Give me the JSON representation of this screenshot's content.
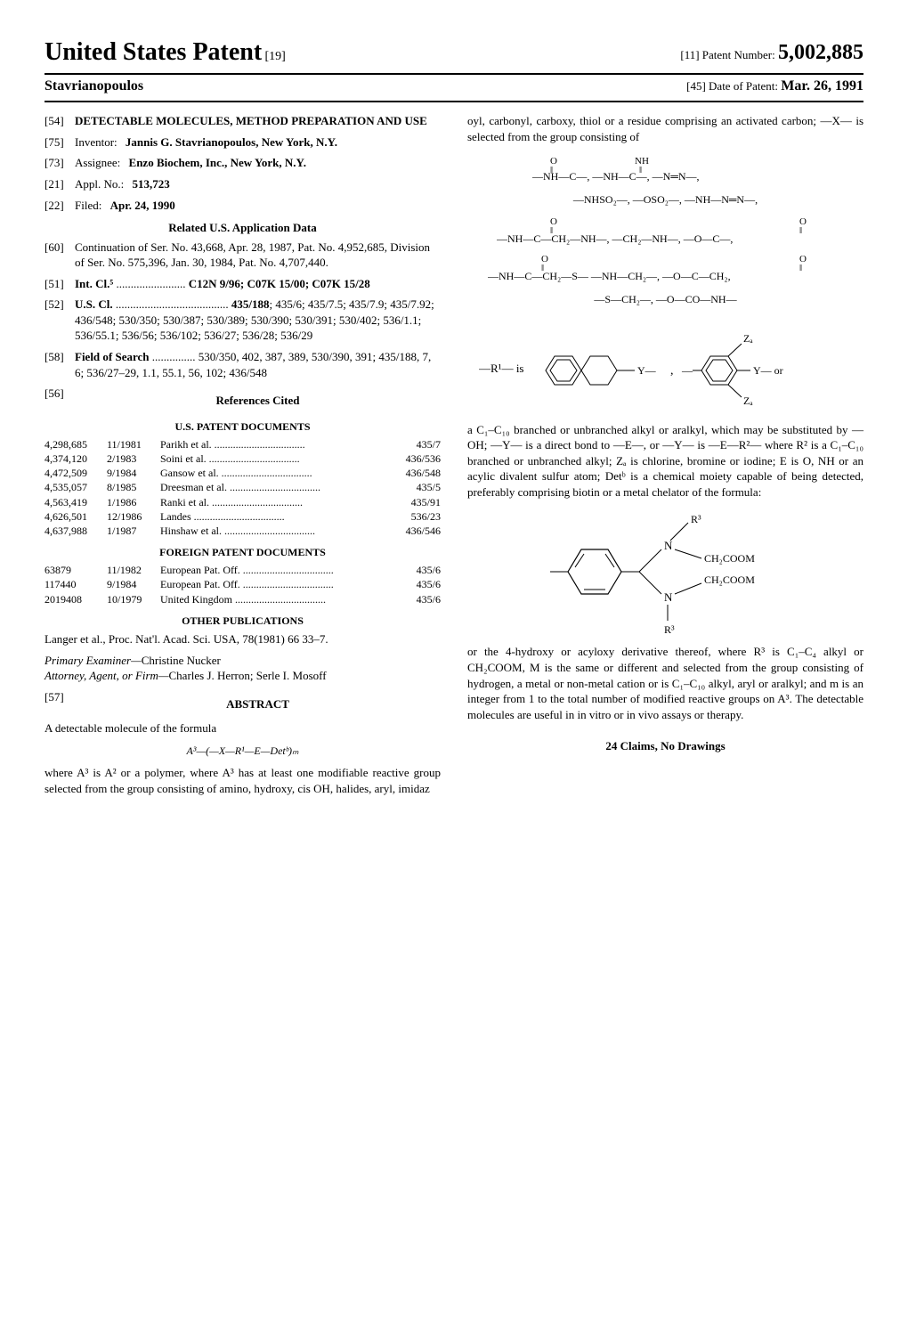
{
  "header": {
    "main_title_left": "United States Patent",
    "main_title_num": "[19]",
    "inventor_surname": "Stavrianopoulos",
    "patent_num_label": "[11]  Patent Number:",
    "patent_number": "5,002,885",
    "date_label": "[45]  Date of Patent:",
    "date_value": "Mar. 26, 1991"
  },
  "left": {
    "title_num": "[54]",
    "title": "DETECTABLE MOLECULES, METHOD PREPARATION AND USE",
    "inventor_num": "[75]",
    "inventor_label": "Inventor:",
    "inventor_val": "Jannis G. Stavrianopoulos, New York, N.Y.",
    "assignee_num": "[73]",
    "assignee_label": "Assignee:",
    "assignee_val": "Enzo Biochem, Inc., New York, N.Y.",
    "appl_num": "[21]",
    "appl_label": "Appl. No.:",
    "appl_val": "513,723",
    "filed_num": "[22]",
    "filed_label": "Filed:",
    "filed_val": "Apr. 24, 1990",
    "related_h": "Related U.S. Application Data",
    "cont_num": "[60]",
    "cont_text": "Continuation of Ser. No. 43,668, Apr. 28, 1987, Pat. No. 4,952,685, Division of Ser. No. 575,396, Jan. 30, 1984, Pat. No. 4,707,440.",
    "intcl_num": "[51]",
    "intcl_label": "Int. Cl.⁵",
    "intcl_val": "C12N 9/96; C07K 15/00; C07K 15/28",
    "uscl_num": "[52]",
    "uscl_label": "U.S. Cl.",
    "uscl_primary": "435/188",
    "uscl_rest": "; 435/6; 435/7.5; 435/7.9; 435/7.92; 436/548; 530/350; 530/387; 530/389; 530/390; 530/391; 530/402; 536/1.1; 536/55.1; 536/56; 536/102; 536/27; 536/28; 536/29",
    "fos_num": "[58]",
    "fos_label": "Field of Search",
    "fos_val": "530/350, 402, 387, 389, 530/390, 391; 435/188, 7, 6; 536/27–29, 1.1, 55.1, 56, 102; 436/548",
    "refs_num": "[56]",
    "refs_h": "References Cited",
    "uspat_h": "U.S. PATENT DOCUMENTS",
    "us_patents": [
      {
        "no": "4,298,685",
        "date": "11/1981",
        "name": "Parikh et al.",
        "cls": "435/7"
      },
      {
        "no": "4,374,120",
        "date": "2/1983",
        "name": "Soini et al.",
        "cls": "436/536"
      },
      {
        "no": "4,472,509",
        "date": "9/1984",
        "name": "Gansow et al.",
        "cls": "436/548"
      },
      {
        "no": "4,535,057",
        "date": "8/1985",
        "name": "Dreesman et al.",
        "cls": "435/5"
      },
      {
        "no": "4,563,419",
        "date": "1/1986",
        "name": "Ranki et al.",
        "cls": "435/91"
      },
      {
        "no": "4,626,501",
        "date": "12/1986",
        "name": "Landes",
        "cls": "536/23"
      },
      {
        "no": "4,637,988",
        "date": "1/1987",
        "name": "Hinshaw et al.",
        "cls": "436/546"
      }
    ],
    "foreign_h": "FOREIGN PATENT DOCUMENTS",
    "foreign_patents": [
      {
        "no": "63879",
        "date": "11/1982",
        "name": "European Pat. Off.",
        "cls": "435/6"
      },
      {
        "no": "117440",
        "date": "9/1984",
        "name": "European Pat. Off.",
        "cls": "435/6"
      },
      {
        "no": "2019408",
        "date": "10/1979",
        "name": "United Kingdom",
        "cls": "435/6"
      }
    ],
    "otherpub_h": "OTHER PUBLICATIONS",
    "otherpub_text": "Langer et al., Proc. Nat'l. Acad. Sci. USA, 78(1981) 66 33–7.",
    "examiner_label": "Primary Examiner—",
    "examiner_val": "Christine Nucker",
    "attorney_label": "Attorney, Agent, or Firm—",
    "attorney_val": "Charles J. Herron; Serle I. Mosoff",
    "abstract_num": "[57]",
    "abstract_h": "ABSTRACT",
    "abstract_lead": "A detectable molecule of the formula",
    "abstract_formula": "A³—(—X—R¹—E—Detᵇ)ₘ",
    "abstract_p1": "where A³ is A² or a polymer, where A³ has at least one modifiable reactive group selected from the group consisting of amino, hydroxy, cis OH, halides, aryl, imidaz"
  },
  "right": {
    "p1": "oyl, carbonyl, carboxy, thiol or a residue comprising an activated carbon; —X— is selected from the group consisting of",
    "chem_lines": [
      "—NHSO₂—, —OSO₂—, —NH—N═N—,",
      "—S—CH₂—, —O—CO—NH—"
    ],
    "p2": "a C₁–C₁₀ branched or unbranched alkyl or aralkyl, which may be substituted by —OH; —Y— is a direct bond to —E—, or —Y— is —E—R²— where R² is a C₁–C₁₀ branched or unbranched alkyl; Zₐ is chlorine, bromine or iodine; E is O, NH or an acylic divalent sulfur atom; Detᵇ is a chemical moiety capable of being detected, preferably comprising biotin or a metal chelator of the formula:",
    "p3": "or the 4-hydroxy or acyloxy derivative thereof, where R³ is C₁–C₄ alkyl or CH₂COOM, M is the same or different and selected from the group consisting of hydrogen, a metal or non-metal cation or is C₁–C₁₀ alkyl, aryl or aralkyl; and m is an integer from 1 to the total number of modified reactive groups on A³. The detectable molecules are useful in in vitro or in vivo assays or therapy.",
    "claims": "24 Claims, No Drawings"
  }
}
